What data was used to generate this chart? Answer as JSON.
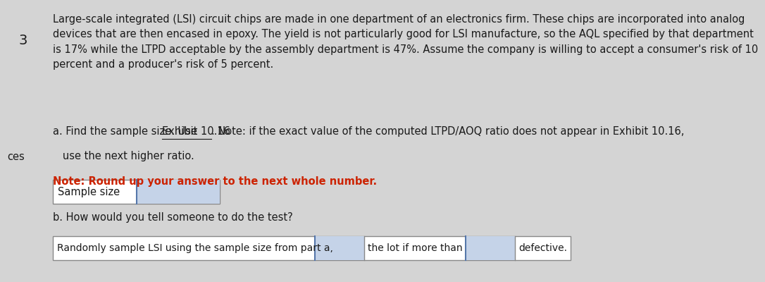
{
  "background_color": "#d4d4d4",
  "number_label": "3",
  "paragraph_text": "Large-scale integrated (LSI) circuit chips are made in one department of an electronics firm. These chips are incorporated into analog\ndevices that are then encased in epoxy. The yield is not particularly good for LSI manufacture, so the AQL specified by that department\nis 17% while the LTPD acceptable by the assembly department is 47%. Assume the company is willing to accept a consumer's risk of 10\npercent and a producer's risk of 5 percent.",
  "part_a_line1_before": "a. Find the sample size. Use ",
  "part_a_exhibit": "Exhibit 10.16",
  "part_a_line1_after": ". Note: if the exact value of the computed LTPD/AOQ ratio does not appear in Exhibit 10.16,",
  "part_a_line2": "   use the next higher ratio.",
  "note_text": "Note: Round up your answer to the next whole number.",
  "part_b_text": "b. How would you tell someone to do the test?",
  "sample_size_label": "Sample size",
  "row_b_text1": "Randomly sample LSI using the sample size from part a,",
  "row_b_text2": "the lot if more than",
  "row_b_text3": "defective.",
  "ces_label": "ces",
  "box_fill_color": "#c5d3e8",
  "box_border_color": "#5577aa",
  "text_color": "#1a1a1a",
  "note_color": "#cc2200",
  "font_size_body": 10.5,
  "border_color": "#888888"
}
